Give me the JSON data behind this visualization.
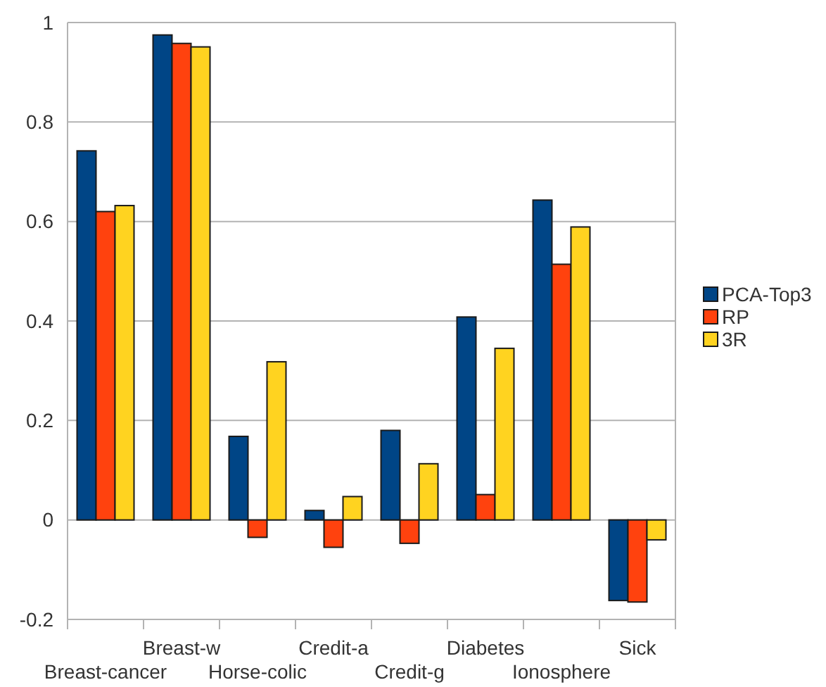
{
  "chart_data": {
    "type": "bar",
    "categories": [
      "Breast-cancer",
      "Breast-w",
      "Horse-colic",
      "Credit-a",
      "Credit-g",
      "Diabetes",
      "Ionosphere",
      "Sick"
    ],
    "series": [
      {
        "name": "PCA-Top3",
        "color": "#004586",
        "values": [
          0.742,
          0.975,
          0.168,
          0.019,
          0.18,
          0.408,
          0.643,
          -0.162
        ]
      },
      {
        "name": "RP",
        "color": "#ff420e",
        "values": [
          0.62,
          0.958,
          -0.035,
          -0.055,
          -0.047,
          0.051,
          0.514,
          -0.165
        ]
      },
      {
        "name": "3R",
        "color": "#ffd320",
        "values": [
          0.632,
          0.951,
          0.318,
          0.047,
          0.113,
          0.345,
          0.589,
          -0.04
        ]
      }
    ],
    "ylim": [
      -0.2,
      1
    ],
    "yticks": [
      -0.2,
      0,
      0.2,
      0.4,
      0.6,
      0.8,
      1
    ],
    "grid": "y",
    "legend": "right"
  }
}
